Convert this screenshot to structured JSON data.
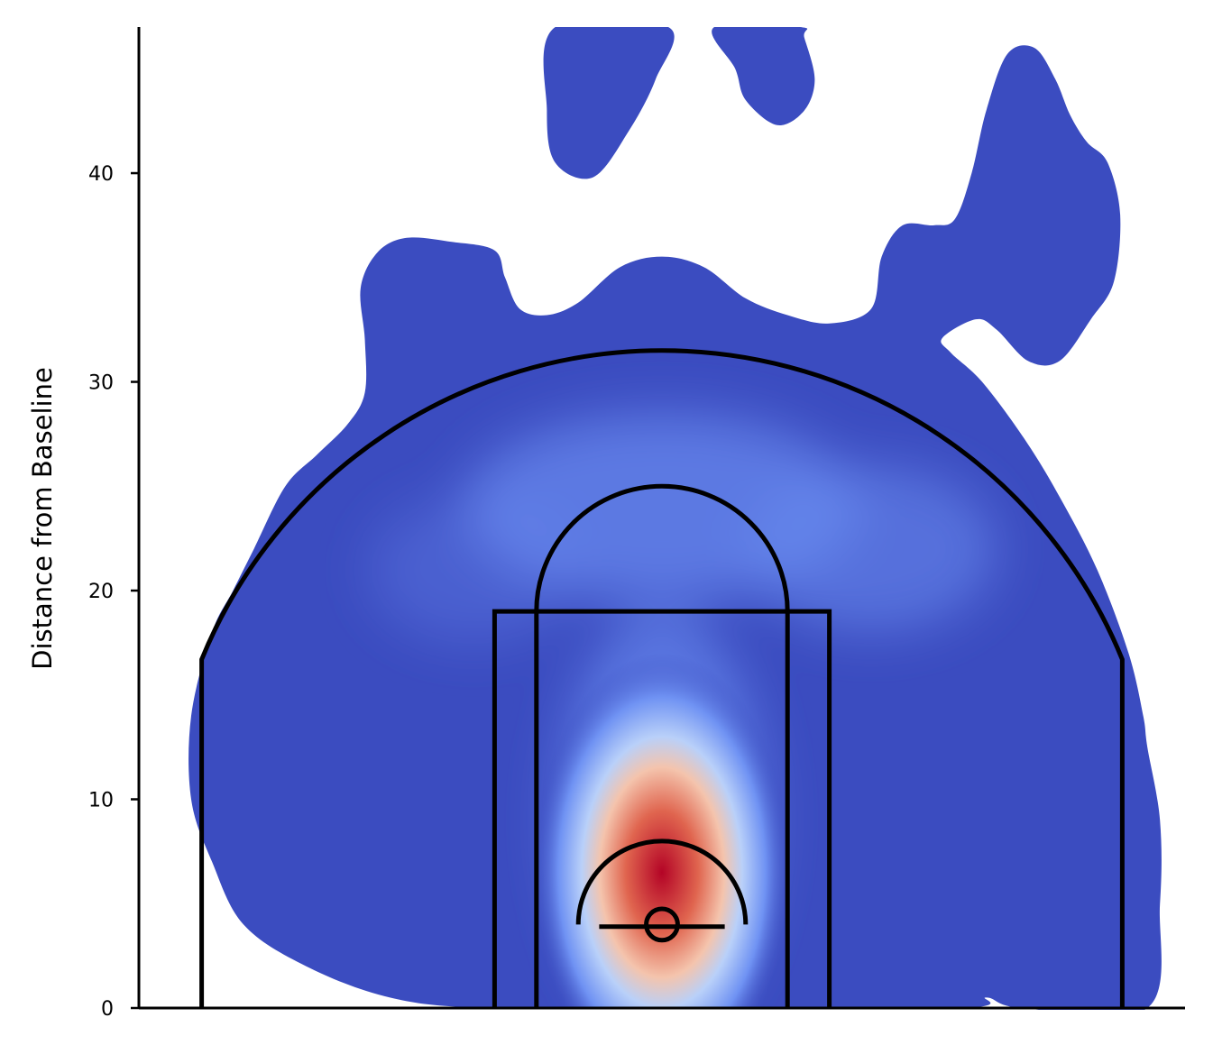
{
  "chart_data": {
    "type": "heatmap",
    "title": "",
    "xlabel": "",
    "ylabel": "Distance from Baseline",
    "ylim": [
      0,
      47
    ],
    "xlim": [
      -25,
      25
    ],
    "yticks": [
      0,
      10,
      20,
      30,
      40
    ],
    "grid": false,
    "legend": "none",
    "colormap": "coolwarm",
    "colors": {
      "cold": "#3b4cc0",
      "cool": "#6788ee",
      "neutral": "#dddddd",
      "warm": "#e67f5f",
      "hot": "#b40426"
    },
    "peak": {
      "x": 0,
      "y": 6.5
    },
    "density_region_outline": [
      [
        -8.5,
        0
      ],
      [
        -13,
        0.5
      ],
      [
        -17,
        2
      ],
      [
        -20,
        4
      ],
      [
        -21.5,
        7
      ],
      [
        -22.5,
        10
      ],
      [
        -22.5,
        14
      ],
      [
        -21.5,
        18
      ],
      [
        -20.5,
        20
      ],
      [
        -19.5,
        22
      ],
      [
        -18,
        25
      ],
      [
        -16.5,
        26.5
      ],
      [
        -15,
        28
      ],
      [
        -14.2,
        29.5
      ],
      [
        -14.2,
        32
      ],
      [
        -14.4,
        34.5
      ],
      [
        -13.6,
        36.2
      ],
      [
        -12.2,
        36.9
      ],
      [
        -10,
        36.7
      ],
      [
        -8,
        36.3
      ],
      [
        -7.5,
        35
      ],
      [
        -6.8,
        33.5
      ],
      [
        -5.5,
        33.2
      ],
      [
        -4,
        33.8
      ],
      [
        -2,
        35.5
      ],
      [
        0,
        36
      ],
      [
        2,
        35.5
      ],
      [
        4,
        34
      ],
      [
        6,
        33.2
      ],
      [
        8,
        32.8
      ],
      [
        10,
        33.5
      ],
      [
        10.5,
        36
      ],
      [
        11.5,
        37.5
      ],
      [
        13,
        37.5
      ],
      [
        14,
        37.8
      ],
      [
        14.8,
        40
      ],
      [
        15.5,
        43
      ],
      [
        16.5,
        45.7
      ],
      [
        17.8,
        46
      ],
      [
        18.8,
        44.5
      ],
      [
        19.5,
        42.8
      ],
      [
        20.3,
        41.5
      ],
      [
        21.3,
        40.5
      ],
      [
        21.9,
        38
      ],
      [
        21.6,
        34.8
      ],
      [
        20.5,
        33
      ],
      [
        19,
        31
      ],
      [
        17.5,
        31
      ],
      [
        16,
        32.5
      ],
      [
        15,
        33
      ],
      [
        13.4,
        32.1
      ],
      [
        13.8,
        31.4
      ],
      [
        15.3,
        30
      ],
      [
        17.3,
        27.3
      ],
      [
        19,
        24.5
      ],
      [
        20.8,
        21
      ],
      [
        22.3,
        17
      ],
      [
        23,
        14
      ],
      [
        23.2,
        12.5
      ],
      [
        23.8,
        9
      ],
      [
        23.8,
        5
      ],
      [
        23.2,
        0
      ],
      [
        17.2,
        0
      ],
      [
        15.5,
        0.5
      ],
      [
        14.3,
        0
      ],
      [
        0,
        0
      ]
    ],
    "density_blobs": [
      {
        "outline": [
          [
            -5.1,
            47
          ],
          [
            -5.5,
            43
          ],
          [
            -5.1,
            40.5
          ],
          [
            -3.3,
            39.8
          ],
          [
            -1.6,
            42
          ],
          [
            -0.3,
            44.5
          ],
          [
            0.3,
            47
          ]
        ]
      },
      {
        "outline": [
          [
            2.5,
            47
          ],
          [
            3.5,
            45
          ],
          [
            4,
            43.5
          ],
          [
            5.5,
            42.3
          ],
          [
            6.8,
            43
          ],
          [
            7.3,
            44.5
          ],
          [
            6.8,
            46.5
          ],
          [
            6.6,
            47
          ]
        ]
      }
    ],
    "court_lines": {
      "three_point_arc_radius": 23.75,
      "three_point_corner_x": 22,
      "three_point_corner_y": 16.7,
      "lane_outer": {
        "x": [
          -8,
          8
        ],
        "y": [
          0,
          19
        ]
      },
      "lane_inner": {
        "x": [
          -6,
          6
        ],
        "y": [
          0,
          19
        ]
      },
      "free_throw_circle_radius": 6,
      "restricted_arc_radius": 4,
      "hoop": {
        "x": 0,
        "y": 4,
        "r": 0.75
      },
      "backboard": {
        "x": [
          -3,
          3
        ],
        "y": 3.9
      }
    }
  }
}
